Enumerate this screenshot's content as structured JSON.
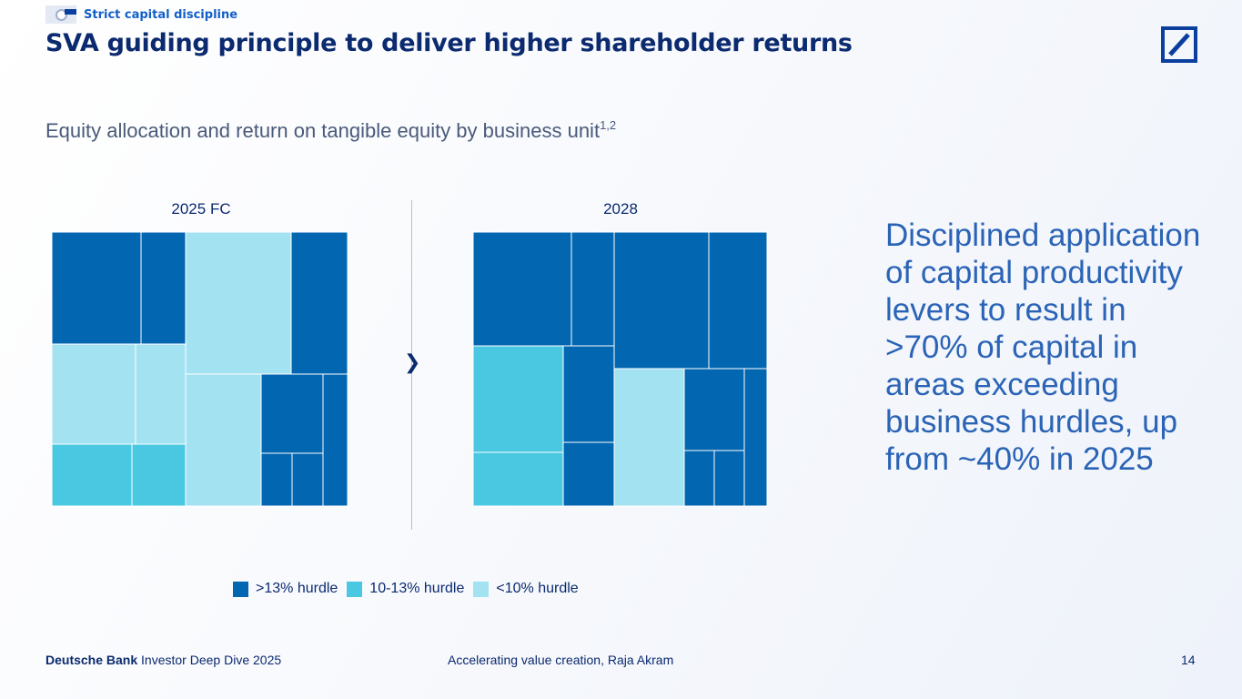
{
  "header": {
    "section_tag": "Strict capital discipline",
    "title": "SVA guiding principle to deliver higher shareholder returns"
  },
  "subtitle": {
    "text": "Equity allocation and return on tangible equity by business unit",
    "footnote_ref": "1,2"
  },
  "callout": "Disciplined application of capital productivity levers to result in >70% of capital in areas exceeding business hurdles, up from ~40% in 2025",
  "colors": {
    "above_13": "#0366b1",
    "between_10_13": "#4bc8e1",
    "below_10": "#a3e2f1",
    "brand": "#0b2a6f",
    "accent": "#2b64b6"
  },
  "chart_data": [
    {
      "type": "treemap",
      "title": "2025 FC",
      "legend": [
        ">13% hurdle",
        "10-13% hurdle",
        "<10% hurdle"
      ],
      "tiles": [
        {
          "category": ">13% hurdle",
          "share": 0.119
        },
        {
          "category": ">13% hurdle",
          "share": 0.062
        },
        {
          "category": "<10% hurdle",
          "share": 0.184
        },
        {
          "category": ">13% hurdle",
          "share": 0.096
        },
        {
          "category": "<10% hurdle",
          "share": 0.107
        },
        {
          "category": "<10% hurdle",
          "share": 0.063
        },
        {
          "category": "10-13% hurdle",
          "share": 0.061
        },
        {
          "category": "10-13% hurdle",
          "share": 0.041
        },
        {
          "category": "<10% hurdle",
          "share": 0.138
        },
        {
          "category": ">13% hurdle",
          "share": 0.059
        },
        {
          "category": ">13% hurdle",
          "share": 0.018
        },
        {
          "category": ">13% hurdle",
          "share": 0.019
        },
        {
          "category": ">13% hurdle",
          "share": 0.043
        }
      ]
    },
    {
      "type": "treemap",
      "title": "2028",
      "legend": [
        ">13% hurdle",
        "10-13% hurdle",
        "<10% hurdle"
      ],
      "tiles": [
        {
          "category": ">13% hurdle",
          "share": 0.139
        },
        {
          "category": ">13% hurdle",
          "share": 0.061
        },
        {
          "category": ">13% hurdle",
          "share": 0.159
        },
        {
          "category": ">13% hurdle",
          "share": 0.099
        },
        {
          "category": "10-13% hurdle",
          "share": 0.119
        },
        {
          "category": "10-13% hurdle",
          "share": 0.059
        },
        {
          "category": ">13% hurdle",
          "share": 0.061
        },
        {
          "category": ">13% hurdle",
          "share": 0.04
        },
        {
          "category": "<10% hurdle",
          "share": 0.124
        },
        {
          "category": ">13% hurdle",
          "share": 0.053
        },
        {
          "category": ">13% hurdle",
          "share": 0.021
        },
        {
          "category": ">13% hurdle",
          "share": 0.021
        },
        {
          "category": ">13% hurdle",
          "share": 0.038
        }
      ]
    }
  ],
  "legend": {
    "above_13": ">13% hurdle",
    "between_10_13": "10-13% hurdle",
    "below_10": "<10% hurdle"
  },
  "footer": {
    "brand": "Deutsche Bank",
    "event": "Investor Deep Dive 2025",
    "center": "Accelerating value creation, Raja Akram",
    "page_number": "14"
  }
}
